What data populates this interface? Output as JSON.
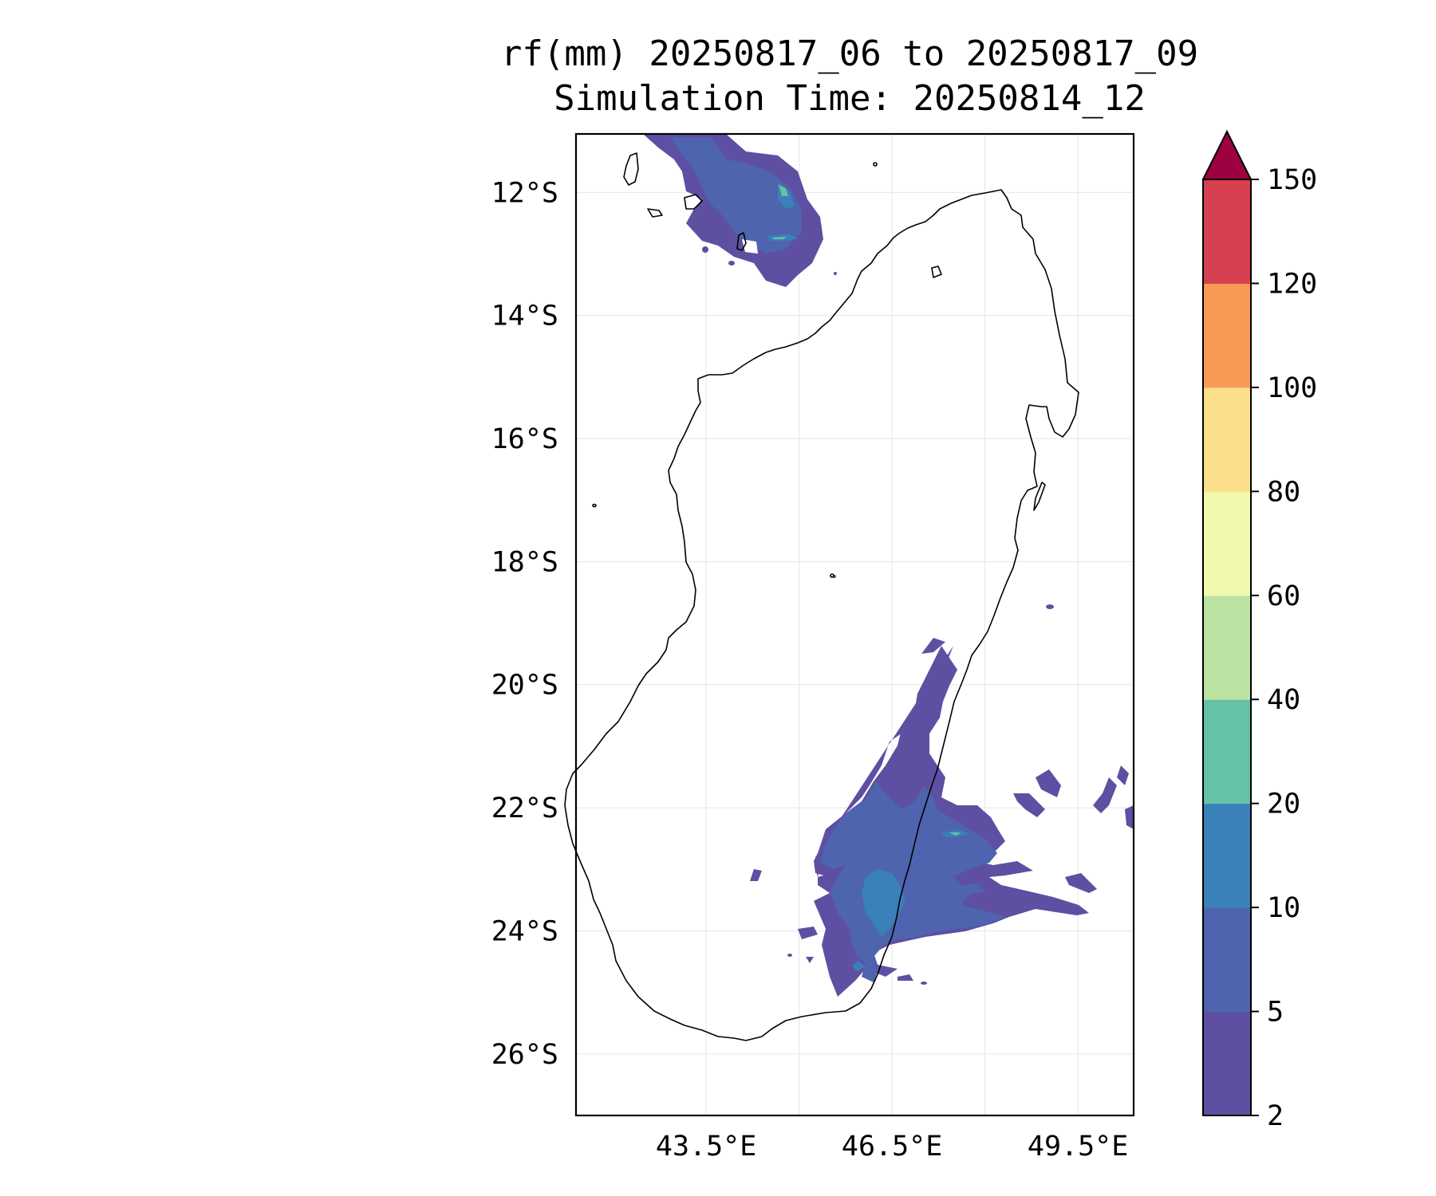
{
  "title_line1": "rf(mm) 20250817_06 to 20250817_09",
  "title_line2": "Simulation Time: 20250814_12",
  "lat_labels": [
    "12°S",
    "14°S",
    "16°S",
    "18°S",
    "20°S",
    "22°S",
    "24°S",
    "26°S"
  ],
  "lon_labels": [
    "43.5°E",
    "46.5°E",
    "49.5°E"
  ],
  "colorbar": {
    "ticks": [
      "2",
      "5",
      "10",
      "20",
      "40",
      "60",
      "80",
      "100",
      "120",
      "150"
    ],
    "colors": [
      "#5e4fa2",
      "#4e64ae",
      "#3a80b9",
      "#65c1a7",
      "#bde3a2",
      "#f1f9ad",
      "#fbdf8a",
      "#f89a56",
      "#d6404e",
      "#9e0142"
    ],
    "extend": "max"
  },
  "chart_data": {
    "type": "contourf",
    "variable": "rf(mm)",
    "levels": [
      2,
      5,
      10,
      20,
      40,
      60,
      80,
      100,
      120,
      150
    ],
    "xlim": [
      41.4,
      50.4
    ],
    "ylim": [
      -27.0,
      -11.05
    ],
    "lon_ticks": [
      43.5,
      45.0,
      46.5,
      48.0,
      49.5,
      51.0
    ],
    "lat_ticks": [
      -12,
      -14,
      -16,
      -18,
      -20,
      -22,
      -24,
      -26
    ],
    "grid": true,
    "colorbar_position": "right",
    "rain_regions": [
      {
        "area": "northwest sea near Comoros",
        "max_level": "20-40"
      },
      {
        "area": "southeast coast",
        "max_level": "20-40"
      }
    ]
  }
}
